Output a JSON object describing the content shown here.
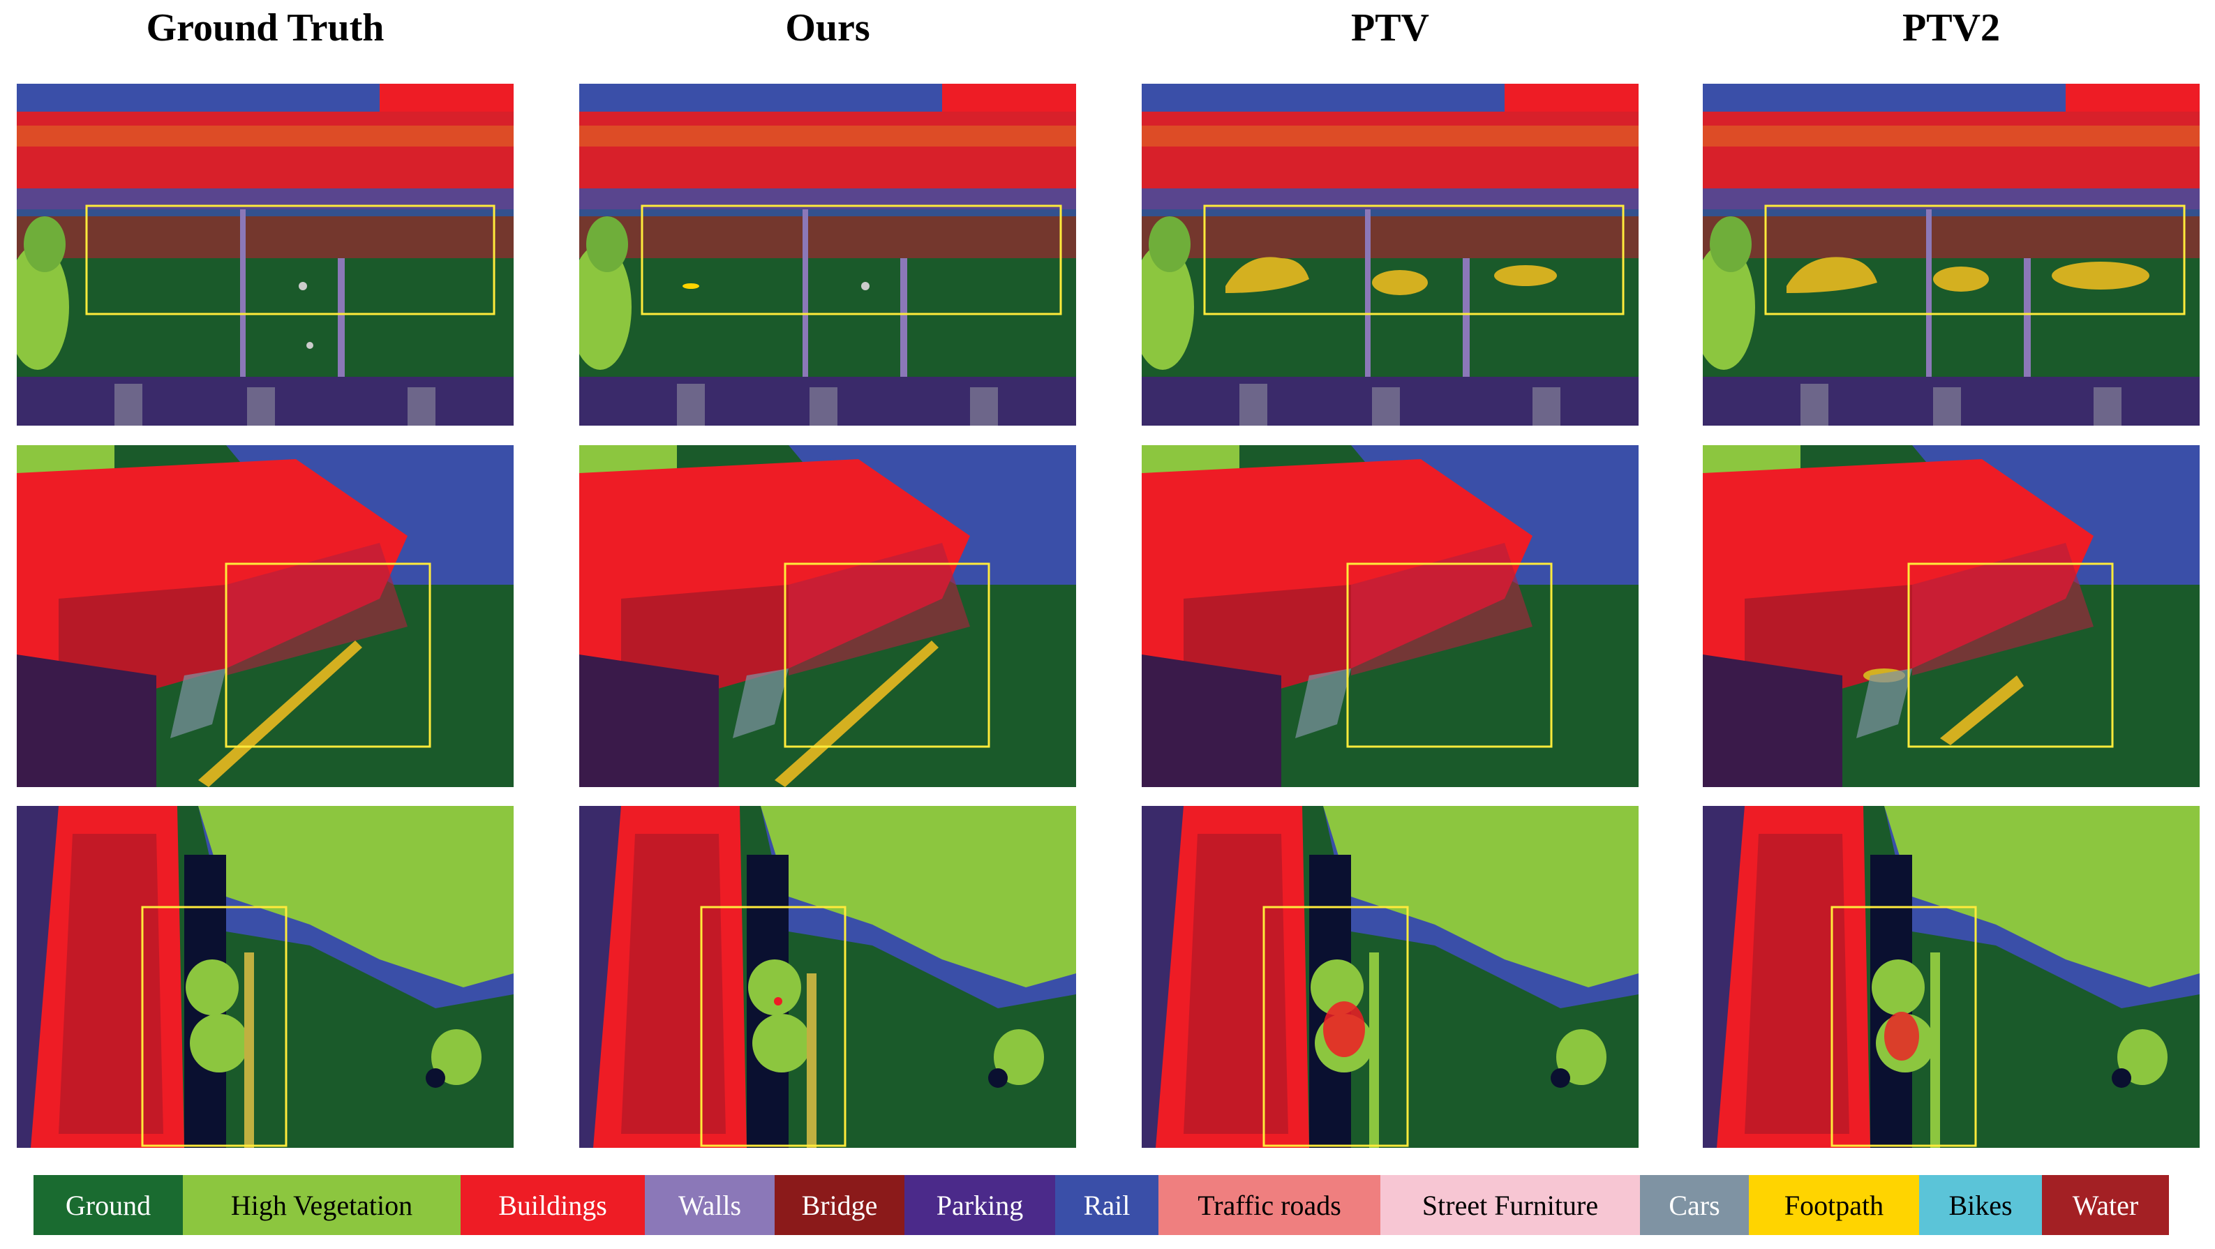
{
  "columns": [
    "Ground Truth",
    "Ours",
    "PTV",
    "PTV2"
  ],
  "legend": [
    {
      "label": "Ground",
      "color": "#1a6b30",
      "text": "#ffffff"
    },
    {
      "label": "High Vegetation",
      "color": "#8cc63f",
      "text": "#000000"
    },
    {
      "label": "Buildings",
      "color": "#ee1c25",
      "text": "#ffffff"
    },
    {
      "label": "Walls",
      "color": "#8b78b8",
      "text": "#ffffff"
    },
    {
      "label": "Bridge",
      "color": "#8b1a1a",
      "text": "#ffffff"
    },
    {
      "label": "Parking",
      "color": "#4b2a8a",
      "text": "#ffffff"
    },
    {
      "label": "Rail",
      "color": "#3a4fa8",
      "text": "#ffffff"
    },
    {
      "label": "Traffic roads",
      "color": "#ef7f7f",
      "text": "#000000"
    },
    {
      "label": "Street Furniture",
      "color": "#f7c6d3",
      "text": "#000000"
    },
    {
      "label": "Cars",
      "color": "#7f93a3",
      "text": "#ffffff"
    },
    {
      "label": "Footpath",
      "color": "#ffd400",
      "text": "#000000"
    },
    {
      "label": "Bikes",
      "color": "#5bc4d8",
      "text": "#000000"
    },
    {
      "label": "Water",
      "color": "#a32024",
      "text": "#ffffff"
    }
  ]
}
